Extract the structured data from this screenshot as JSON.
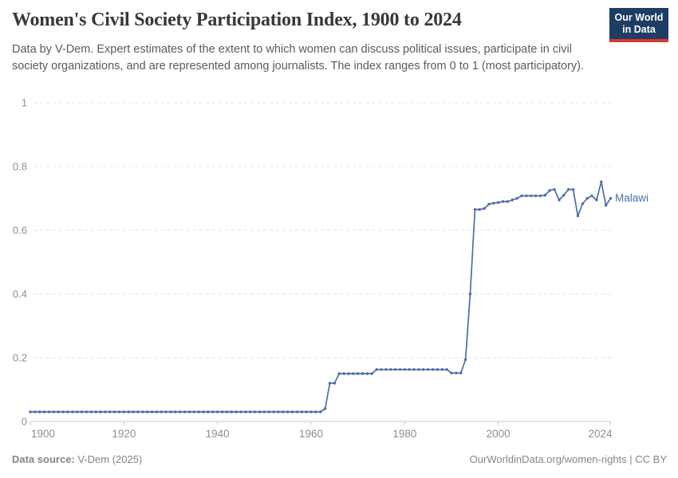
{
  "header": {
    "title": "Women's Civil Society Participation Index, 1900 to 2024",
    "subtitle": "Data by V-Dem. Expert estimates of the extent to which women can discuss political issues, participate in civil society organizations, and are represented among journalists. The index ranges from 0 to 1 (most participatory).",
    "logo": {
      "line1": "Our World",
      "line2": "in Data",
      "bg_color": "#1d3d63",
      "accent_color": "#d6392e"
    }
  },
  "chart_data": {
    "type": "line",
    "title": "Women's Civil Society Participation Index, 1900 to 2024",
    "xlabel": "",
    "ylabel": "",
    "xlim": [
      1900,
      2024
    ],
    "ylim": [
      0,
      1
    ],
    "x_ticks": [
      1900,
      1920,
      1940,
      1960,
      1980,
      2000,
      2024
    ],
    "y_ticks": [
      0,
      0.2,
      0.4,
      0.6,
      0.8,
      1
    ],
    "grid": "horizontal-dashed",
    "marker": "circle-every-year",
    "legend_position": "line-end-label",
    "line_color": "#4c6ea8",
    "grid_color": "#e3e3e3",
    "axis_color": "#cacaca",
    "tick_label_color": "#8e8e8e",
    "series": [
      {
        "name": "Malawi",
        "years": [
          1900,
          1901,
          1902,
          1903,
          1904,
          1905,
          1906,
          1907,
          1908,
          1909,
          1910,
          1911,
          1912,
          1913,
          1914,
          1915,
          1916,
          1917,
          1918,
          1919,
          1920,
          1921,
          1922,
          1923,
          1924,
          1925,
          1926,
          1927,
          1928,
          1929,
          1930,
          1931,
          1932,
          1933,
          1934,
          1935,
          1936,
          1937,
          1938,
          1939,
          1940,
          1941,
          1942,
          1943,
          1944,
          1945,
          1946,
          1947,
          1948,
          1949,
          1950,
          1951,
          1952,
          1953,
          1954,
          1955,
          1956,
          1957,
          1958,
          1959,
          1960,
          1961,
          1962,
          1963,
          1964,
          1965,
          1966,
          1967,
          1968,
          1969,
          1970,
          1971,
          1972,
          1973,
          1974,
          1975,
          1976,
          1977,
          1978,
          1979,
          1980,
          1981,
          1982,
          1983,
          1984,
          1985,
          1986,
          1987,
          1988,
          1989,
          1990,
          1991,
          1992,
          1993,
          1994,
          1995,
          1996,
          1997,
          1998,
          1999,
          2000,
          2001,
          2002,
          2003,
          2004,
          2005,
          2006,
          2007,
          2008,
          2009,
          2010,
          2011,
          2012,
          2013,
          2014,
          2015,
          2016,
          2017,
          2018,
          2019,
          2020,
          2021,
          2022,
          2023,
          2024
        ],
        "values": [
          0.03,
          0.03,
          0.03,
          0.03,
          0.03,
          0.03,
          0.03,
          0.03,
          0.03,
          0.03,
          0.03,
          0.03,
          0.03,
          0.03,
          0.03,
          0.03,
          0.03,
          0.03,
          0.03,
          0.03,
          0.03,
          0.03,
          0.03,
          0.03,
          0.03,
          0.03,
          0.03,
          0.03,
          0.03,
          0.03,
          0.03,
          0.03,
          0.03,
          0.03,
          0.03,
          0.03,
          0.03,
          0.03,
          0.03,
          0.03,
          0.03,
          0.03,
          0.03,
          0.03,
          0.03,
          0.03,
          0.03,
          0.03,
          0.03,
          0.03,
          0.03,
          0.03,
          0.03,
          0.03,
          0.03,
          0.03,
          0.03,
          0.03,
          0.03,
          0.03,
          0.03,
          0.03,
          0.03,
          0.04,
          0.12,
          0.12,
          0.15,
          0.15,
          0.15,
          0.15,
          0.15,
          0.15,
          0.15,
          0.15,
          0.163,
          0.163,
          0.163,
          0.163,
          0.163,
          0.163,
          0.163,
          0.163,
          0.163,
          0.163,
          0.163,
          0.163,
          0.163,
          0.163,
          0.163,
          0.163,
          0.152,
          0.152,
          0.152,
          0.194,
          0.4,
          0.665,
          0.665,
          0.668,
          0.682,
          0.685,
          0.687,
          0.69,
          0.69,
          0.695,
          0.7,
          0.708,
          0.708,
          0.708,
          0.708,
          0.708,
          0.71,
          0.725,
          0.728,
          0.695,
          0.71,
          0.728,
          0.728,
          0.645,
          0.683,
          0.7,
          0.708,
          0.695,
          0.752,
          0.678,
          0.7
        ]
      }
    ]
  },
  "footer": {
    "source_label": "Data source:",
    "source_value": " V-Dem (2025)",
    "credit": "OurWorldinData.org/women-rights | CC BY"
  }
}
